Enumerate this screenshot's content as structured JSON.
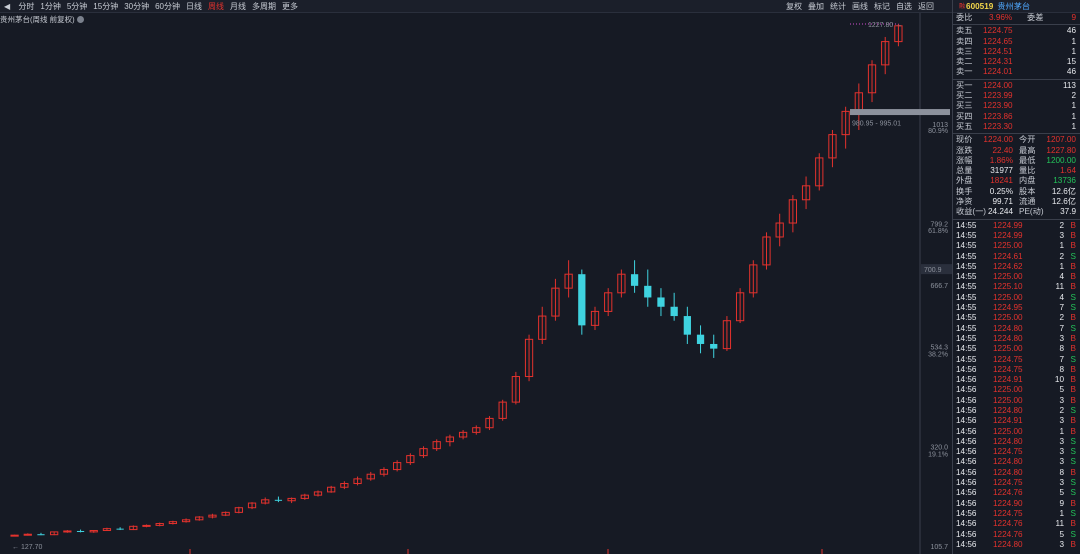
{
  "toolbar": {
    "periods": [
      "分时",
      "1分钟",
      "5分钟",
      "15分钟",
      "30分钟",
      "60分钟",
      "日线",
      "周线",
      "月线",
      "多周期",
      "更多"
    ],
    "active_period": "周线",
    "tools": [
      "复权",
      "叠加",
      "统计",
      "画线",
      "标记",
      "自选",
      "返回"
    ]
  },
  "chart": {
    "title": "贵州茅台(周线 前复权)",
    "y_labels": [
      "1013",
      "80.9%",
      "799.2",
      "61.8%",
      "666.7",
      "534.3",
      "38.2%",
      "320.0",
      "19.1%",
      "105.7"
    ],
    "current_price_tag": "700.9",
    "high_marker": "1227.80",
    "low_marker": "127.70",
    "range_tooltip": "980.95 - 995.01",
    "colors": {
      "up": "#e3322d",
      "down": "#3fd3e0",
      "background": "#161a24"
    }
  },
  "chart_data": {
    "type": "candlestick",
    "title": "贵州茅台(周线 前复权)",
    "ylim": [
      105.7,
      1230
    ],
    "series": [
      {
        "values": [
          [
            128,
            130,
            127.7,
            129
          ],
          [
            129,
            133,
            128,
            131
          ],
          [
            131,
            134,
            129,
            130
          ],
          [
            130,
            137,
            129,
            136
          ],
          [
            136,
            140,
            134,
            138
          ],
          [
            138,
            141,
            135,
            136
          ],
          [
            136,
            140,
            134,
            139
          ],
          [
            139,
            145,
            138,
            143
          ],
          [
            143,
            146,
            140,
            141
          ],
          [
            141,
            150,
            140,
            148
          ],
          [
            148,
            152,
            146,
            150
          ],
          [
            150,
            156,
            148,
            154
          ],
          [
            154,
            160,
            152,
            158
          ],
          [
            158,
            165,
            156,
            162
          ],
          [
            162,
            170,
            160,
            168
          ],
          [
            168,
            175,
            165,
            172
          ],
          [
            172,
            180,
            170,
            178
          ],
          [
            178,
            190,
            176,
            188
          ],
          [
            188,
            200,
            185,
            198
          ],
          [
            198,
            210,
            195,
            205
          ],
          [
            205,
            212,
            200,
            203
          ],
          [
            203,
            210,
            198,
            208
          ],
          [
            208,
            218,
            205,
            215
          ],
          [
            215,
            225,
            212,
            222
          ],
          [
            222,
            235,
            220,
            232
          ],
          [
            232,
            245,
            228,
            240
          ],
          [
            240,
            255,
            236,
            250
          ],
          [
            250,
            265,
            246,
            260
          ],
          [
            260,
            275,
            255,
            270
          ],
          [
            270,
            290,
            266,
            285
          ],
          [
            285,
            305,
            280,
            300
          ],
          [
            300,
            320,
            295,
            315
          ],
          [
            315,
            335,
            310,
            330
          ],
          [
            330,
            345,
            320,
            340
          ],
          [
            340,
            355,
            335,
            350
          ],
          [
            350,
            365,
            345,
            360
          ],
          [
            360,
            385,
            355,
            380
          ],
          [
            380,
            420,
            375,
            415
          ],
          [
            415,
            480,
            410,
            470
          ],
          [
            470,
            560,
            460,
            550
          ],
          [
            550,
            620,
            540,
            600
          ],
          [
            600,
            680,
            590,
            660
          ],
          [
            660,
            720,
            640,
            690
          ],
          [
            690,
            700,
            560,
            580
          ],
          [
            580,
            620,
            570,
            610
          ],
          [
            610,
            660,
            600,
            650
          ],
          [
            650,
            700,
            640,
            690
          ],
          [
            690,
            720,
            650,
            665
          ],
          [
            665,
            700,
            620,
            640
          ],
          [
            640,
            660,
            600,
            620
          ],
          [
            620,
            650,
            590,
            600
          ],
          [
            600,
            620,
            540,
            560
          ],
          [
            560,
            580,
            520,
            540
          ],
          [
            540,
            560,
            510,
            530
          ],
          [
            530,
            600,
            525,
            590
          ],
          [
            590,
            660,
            585,
            650
          ],
          [
            650,
            720,
            640,
            710
          ],
          [
            710,
            780,
            700,
            770
          ],
          [
            770,
            820,
            750,
            800
          ],
          [
            800,
            860,
            780,
            850
          ],
          [
            850,
            900,
            830,
            880
          ],
          [
            880,
            950,
            870,
            940
          ],
          [
            940,
            1000,
            920,
            990
          ],
          [
            990,
            1050,
            960,
            1040
          ],
          [
            1040,
            1100,
            1000,
            1080
          ],
          [
            1080,
            1150,
            1060,
            1140
          ],
          [
            1140,
            1200,
            1120,
            1190
          ],
          [
            1190,
            1228,
            1180,
            1224
          ]
        ]
      }
    ]
  },
  "panel": {
    "stock_badge": "融",
    "stock_code": "600519",
    "stock_name": "贵州茅台",
    "weibi_label": "委比",
    "weibi_value": "3.96%",
    "weicha_label": "委差",
    "weicha_value": "9",
    "asks": [
      {
        "label": "卖五",
        "price": "1224.75",
        "vol": "46"
      },
      {
        "label": "卖四",
        "price": "1224.65",
        "vol": "1"
      },
      {
        "label": "卖三",
        "price": "1224.51",
        "vol": "1"
      },
      {
        "label": "卖二",
        "price": "1224.31",
        "vol": "15"
      },
      {
        "label": "卖一",
        "price": "1224.01",
        "vol": "46"
      }
    ],
    "bids": [
      {
        "label": "买一",
        "price": "1224.00",
        "vol": "113"
      },
      {
        "label": "买二",
        "price": "1223.99",
        "vol": "2"
      },
      {
        "label": "买三",
        "price": "1223.90",
        "vol": "1"
      },
      {
        "label": "买四",
        "price": "1223.86",
        "vol": "1"
      },
      {
        "label": "买五",
        "price": "1223.30",
        "vol": "1"
      }
    ],
    "stats": [
      {
        "l1": "现价",
        "v1": "1224.00",
        "c1": "red",
        "l2": "今开",
        "v2": "1207.00",
        "c2": "red"
      },
      {
        "l1": "涨跌",
        "v1": "22.40",
        "c1": "red",
        "l2": "最高",
        "v2": "1227.80",
        "c2": "red"
      },
      {
        "l1": "涨幅",
        "v1": "1.86%",
        "c1": "red",
        "l2": "最低",
        "v2": "1200.00",
        "c2": "green"
      },
      {
        "l1": "总量",
        "v1": "31977",
        "c1": "white",
        "l2": "量比",
        "v2": "1.64",
        "c2": "red"
      },
      {
        "l1": "外盘",
        "v1": "18241",
        "c1": "red",
        "l2": "内盘",
        "v2": "13736",
        "c2": "green"
      },
      {
        "l1": "换手",
        "v1": "0.25%",
        "c1": "white",
        "l2": "股本",
        "v2": "12.6亿",
        "c2": "white"
      },
      {
        "l1": "净资",
        "v1": "99.71",
        "c1": "white",
        "l2": "流通",
        "v2": "12.6亿",
        "c2": "white"
      },
      {
        "l1": "收益(一)",
        "v1": "24.244",
        "c1": "white",
        "l2": "PE(动)",
        "v2": "37.9",
        "c2": "white"
      }
    ],
    "trades": [
      {
        "t": "14:55",
        "p": "1224.99",
        "v": "2",
        "s": "B"
      },
      {
        "t": "14:55",
        "p": "1224.99",
        "v": "3",
        "s": "B"
      },
      {
        "t": "14:55",
        "p": "1225.00",
        "v": "1",
        "s": "B"
      },
      {
        "t": "14:55",
        "p": "1224.61",
        "v": "2",
        "s": "S"
      },
      {
        "t": "14:55",
        "p": "1224.62",
        "v": "1",
        "s": "B"
      },
      {
        "t": "14:55",
        "p": "1225.00",
        "v": "4",
        "s": "B"
      },
      {
        "t": "14:55",
        "p": "1225.10",
        "v": "11",
        "s": "B"
      },
      {
        "t": "14:55",
        "p": "1225.00",
        "v": "4",
        "s": "S"
      },
      {
        "t": "14:55",
        "p": "1224.95",
        "v": "7",
        "s": "S"
      },
      {
        "t": "14:55",
        "p": "1225.00",
        "v": "2",
        "s": "B"
      },
      {
        "t": "14:55",
        "p": "1224.80",
        "v": "7",
        "s": "S"
      },
      {
        "t": "14:55",
        "p": "1224.80",
        "v": "3",
        "s": "B"
      },
      {
        "t": "14:55",
        "p": "1225.00",
        "v": "8",
        "s": "B"
      },
      {
        "t": "14:55",
        "p": "1224.75",
        "v": "7",
        "s": "S"
      },
      {
        "t": "14:56",
        "p": "1224.75",
        "v": "8",
        "s": "B"
      },
      {
        "t": "14:56",
        "p": "1224.91",
        "v": "10",
        "s": "B"
      },
      {
        "t": "14:56",
        "p": "1225.00",
        "v": "5",
        "s": "B"
      },
      {
        "t": "14:56",
        "p": "1225.00",
        "v": "3",
        "s": "B"
      },
      {
        "t": "14:56",
        "p": "1224.80",
        "v": "2",
        "s": "S"
      },
      {
        "t": "14:56",
        "p": "1224.91",
        "v": "3",
        "s": "B"
      },
      {
        "t": "14:56",
        "p": "1225.00",
        "v": "1",
        "s": "B"
      },
      {
        "t": "14:56",
        "p": "1224.80",
        "v": "3",
        "s": "S"
      },
      {
        "t": "14:56",
        "p": "1224.75",
        "v": "3",
        "s": "S"
      },
      {
        "t": "14:56",
        "p": "1224.80",
        "v": "3",
        "s": "S"
      },
      {
        "t": "14:56",
        "p": "1224.80",
        "v": "8",
        "s": "B"
      },
      {
        "t": "14:56",
        "p": "1224.75",
        "v": "3",
        "s": "S"
      },
      {
        "t": "14:56",
        "p": "1224.76",
        "v": "5",
        "s": "S"
      },
      {
        "t": "14:56",
        "p": "1224.90",
        "v": "9",
        "s": "B"
      },
      {
        "t": "14:56",
        "p": "1224.75",
        "v": "1",
        "s": "S"
      },
      {
        "t": "14:56",
        "p": "1224.76",
        "v": "11",
        "s": "B"
      },
      {
        "t": "14:56",
        "p": "1224.76",
        "v": "5",
        "s": "S"
      },
      {
        "t": "14:56",
        "p": "1224.80",
        "v": "3",
        "s": "B"
      }
    ]
  }
}
